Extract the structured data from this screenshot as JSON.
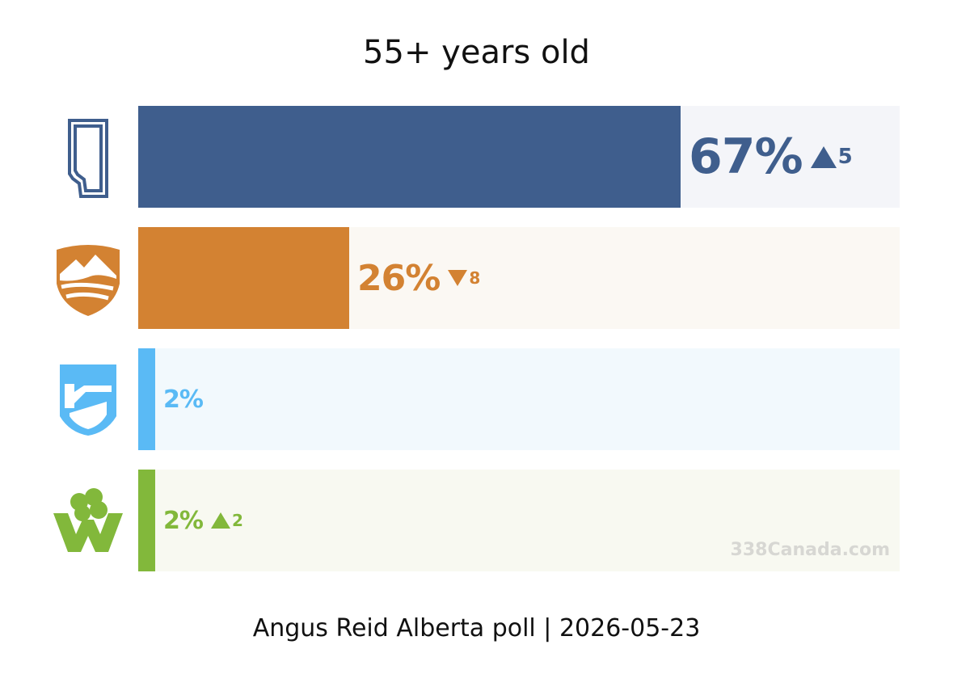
{
  "title": "55+ years old",
  "footer": "Angus Reid Alberta poll | 2026-05-23",
  "watermark": "338Canada.com",
  "colors": {
    "ucp": "#3f5e8d",
    "ucp_track": "#f4f5f9",
    "ndp": "#d38232",
    "ndp_track": "#fbf8f3",
    "abp": "#5abaf5",
    "abp_track": "#f2f9fd",
    "grn": "#82b83b",
    "grn_track": "#f8f9f1"
  },
  "chart_data": {
    "type": "bar",
    "orientation": "horizontal",
    "title": "55+ years old",
    "xlim": [
      0,
      94
    ],
    "bars": [
      {
        "party_icon": "alberta-outline-icon",
        "value": 67,
        "label": "67%",
        "change_direction": "up",
        "change": "5"
      },
      {
        "party_icon": "mountain-shield-icon",
        "value": 26,
        "label": "26%",
        "change_direction": "down",
        "change": "8"
      },
      {
        "party_icon": "blue-shield-icon",
        "value": 2,
        "label": "2%",
        "change_direction": "none",
        "change": ""
      },
      {
        "party_icon": "clover-w-icon",
        "value": 2,
        "label": "2%",
        "change_direction": "up",
        "change": "2"
      }
    ]
  }
}
